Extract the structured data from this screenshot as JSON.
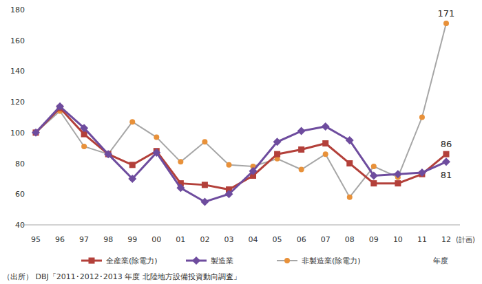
{
  "chart_data": {
    "type": "line",
    "categories": [
      "95",
      "96",
      "97",
      "98",
      "99",
      "00",
      "01",
      "02",
      "03",
      "04",
      "05",
      "06",
      "07",
      "08",
      "09",
      "10",
      "11",
      "12"
    ],
    "x_note": "(計画)",
    "x_label": "年度",
    "source": "（出所） DBJ「2011･2012･2013 年度 北陸地方設備投資動向調査」",
    "ylim": [
      40,
      180
    ],
    "yticks": [
      40,
      60,
      80,
      100,
      120,
      140,
      160,
      180
    ],
    "grid": false,
    "legend": "bottom",
    "series": [
      {
        "name": "全産業(除電力)",
        "color": "#b3403a",
        "marker": "square",
        "line_style": "solid",
        "values": [
          100,
          116,
          99,
          86,
          79,
          88,
          67,
          66,
          63,
          72,
          86,
          89,
          93,
          80,
          67,
          67,
          73,
          86
        ]
      },
      {
        "name": "製造業",
        "color": "#6e4c9e",
        "marker": "diamond",
        "line_style": "solid",
        "values": [
          100,
          117,
          103,
          86,
          70,
          87,
          64,
          55,
          60,
          75,
          94,
          101,
          104,
          95,
          72,
          73,
          74,
          81
        ]
      },
      {
        "name": "非製造業(除電力)",
        "color": "#e8913a",
        "marker": "circle",
        "line_style": "solid",
        "values": [
          100,
          114,
          91,
          86,
          107,
          97,
          81,
          94,
          79,
          78,
          83,
          76,
          86,
          58,
          78,
          71,
          110,
          171
        ]
      }
    ],
    "annotations": [
      {
        "series": 2,
        "text": "171"
      },
      {
        "series": 0,
        "text": "86"
      },
      {
        "series": 1,
        "text": "81"
      }
    ]
  }
}
